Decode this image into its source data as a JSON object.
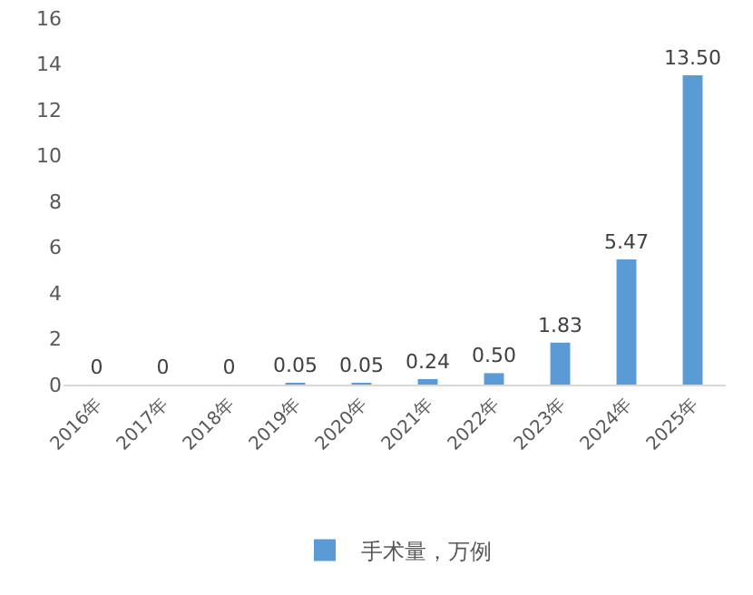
{
  "chart_data": {
    "type": "bar",
    "categories": [
      "2016年",
      "2017年",
      "2018年",
      "2019年",
      "2020年",
      "2021年",
      "2022年",
      "2023年",
      "2024年",
      "2025年"
    ],
    "series": [
      {
        "name": "手术量，万例",
        "color": "#5b9bd5",
        "values": [
          0,
          0,
          0,
          0.05,
          0.05,
          0.24,
          0.5,
          1.83,
          5.47,
          13.5
        ],
        "value_labels": [
          "0",
          "0",
          "0",
          "0.05",
          "0.05",
          "0.24",
          "0.50",
          "1.83",
          "5.47",
          "13.50"
        ]
      }
    ],
    "ylim": [
      0,
      16
    ],
    "yticks": [
      0,
      2,
      4,
      6,
      8,
      10,
      12,
      14,
      16
    ],
    "legend": "bottom"
  }
}
